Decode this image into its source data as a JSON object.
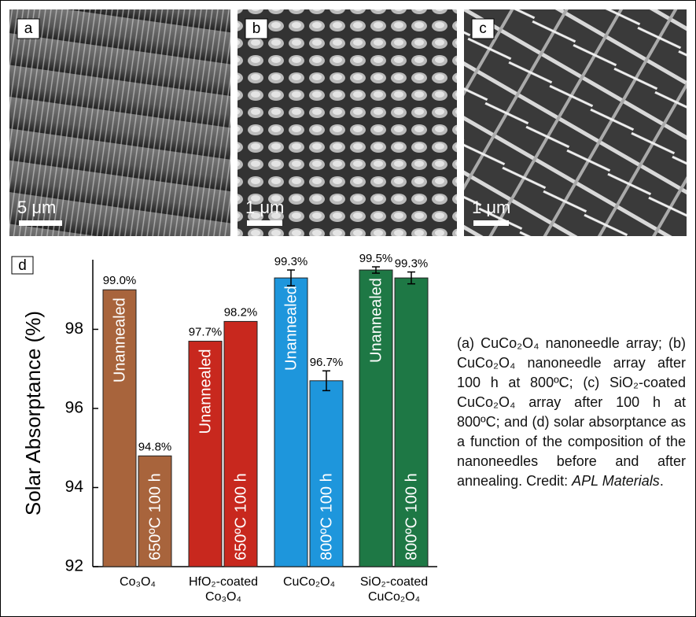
{
  "panels": [
    {
      "label": "a",
      "scale": "5 μm"
    },
    {
      "label": "b",
      "scale": "1 μm"
    },
    {
      "label": "c",
      "scale": "1 μm"
    }
  ],
  "chart_data": {
    "type": "bar",
    "panel_label": "d",
    "y_label": "Solar Absorptance (%)",
    "categories": [
      [
        "Co₃O₄"
      ],
      [
        "HfO₂-coated",
        "Co₃O₄"
      ],
      [
        "CuCo₂O₄"
      ],
      [
        "SiO₂-coated",
        "CuCo₂O₄"
      ]
    ],
    "colors": [
      "#a8643c",
      "#c8281e",
      "#1e96dc",
      "#1e7845"
    ],
    "series": [
      {
        "bar_labels": [
          "Unannealed",
          "Unannealed",
          "Unannealed",
          "Unannealed"
        ],
        "values": [
          99.0,
          97.7,
          99.3,
          99.5
        ],
        "value_labels": [
          "99.0%",
          "97.7%",
          "99.3%",
          "99.5%"
        ],
        "errors": [
          null,
          null,
          0.2,
          0.08
        ]
      },
      {
        "bar_labels": [
          "650ºC 100 h",
          "650ºC 100 h",
          "800ºC 100 h",
          "800ºC 100 h"
        ],
        "values": [
          94.8,
          98.2,
          96.7,
          99.3
        ],
        "value_labels": [
          "94.8%",
          "98.2%",
          "96.7%",
          "99.3%"
        ],
        "errors": [
          null,
          null,
          0.25,
          0.15
        ]
      }
    ],
    "ylim": [
      92,
      99.8
    ],
    "yticks": [
      92,
      94,
      96,
      98
    ]
  },
  "caption": {
    "text": "(a) CuCo₂O₄ nanoneedle array; (b) CuCo₂O₄ nanoneedle array after 100 h at 800ºC; (c) SiO₂-coated CuCo₂O₄ array after 100 h at 800ºC; and (d) solar absorptance as a function of the composition of the nanoneedles before and after annealing. Credit: ",
    "source": "APL Materials",
    "end": "."
  }
}
